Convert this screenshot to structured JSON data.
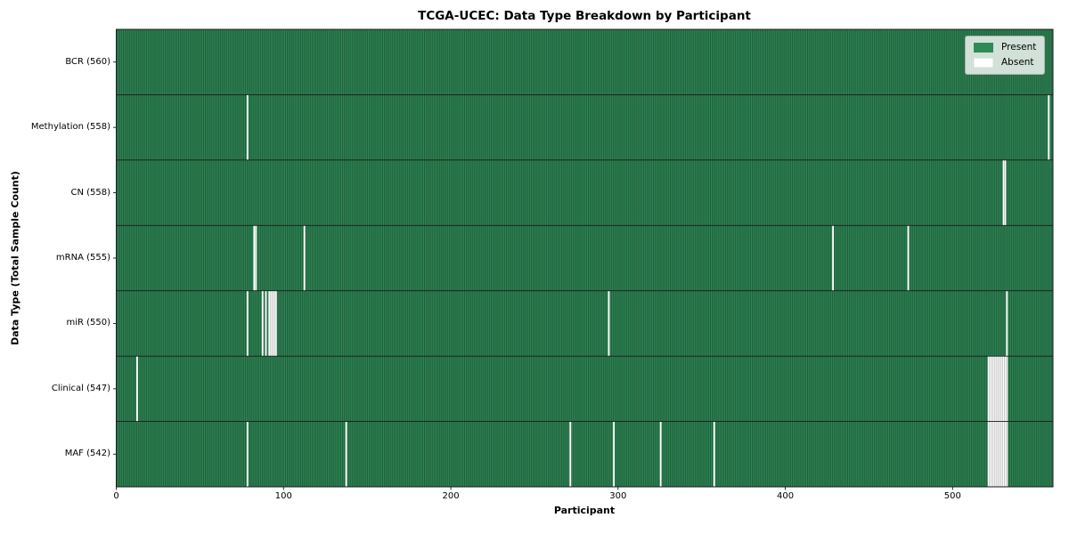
{
  "chart_data": {
    "type": "heatmap",
    "title": "TCGA-UCEC: Data Type Breakdown by Participant",
    "xlabel": "Participant",
    "ylabel": "Data Type (Total Sample Count)",
    "n_participants": 560,
    "x_ticks": [
      0,
      100,
      200,
      300,
      400,
      500
    ],
    "legend": [
      {
        "label": "Present",
        "color": "#2e8b57"
      },
      {
        "label": "Absent",
        "color": "#ffffff"
      }
    ],
    "legend_position": "upper right",
    "grid": false,
    "rows": [
      {
        "label": "BCR (560)",
        "count": 560,
        "absent": []
      },
      {
        "label": "Methylation (558)",
        "count": 558,
        "absent": [
          78,
          557
        ]
      },
      {
        "label": "CN (558)",
        "count": 558,
        "absent": [
          530,
          531
        ]
      },
      {
        "label": "mRNA (555)",
        "count": 555,
        "absent": [
          82,
          83,
          112,
          428,
          473
        ]
      },
      {
        "label": "miR (550)",
        "count": 550,
        "absent": [
          78,
          87,
          89,
          91,
          92,
          93,
          94,
          95,
          294,
          532
        ]
      },
      {
        "label": "Clinical (547)",
        "count": 547,
        "absent": [
          12,
          521,
          522,
          523,
          524,
          525,
          526,
          527,
          528,
          529,
          530,
          531,
          532
        ]
      },
      {
        "label": "MAF (542)",
        "count": 542,
        "absent": [
          78,
          137,
          271,
          297,
          325,
          357,
          521,
          522,
          523,
          524,
          525,
          526,
          527,
          528,
          529,
          530,
          531,
          532
        ]
      }
    ],
    "colors": {
      "present": "#2e8b57",
      "present_edge": "#1c4a31",
      "absent": "#ffffff",
      "absent_edge": "#b3b3b3",
      "axis": "#1a1a1a",
      "background": "#ffffff"
    }
  }
}
